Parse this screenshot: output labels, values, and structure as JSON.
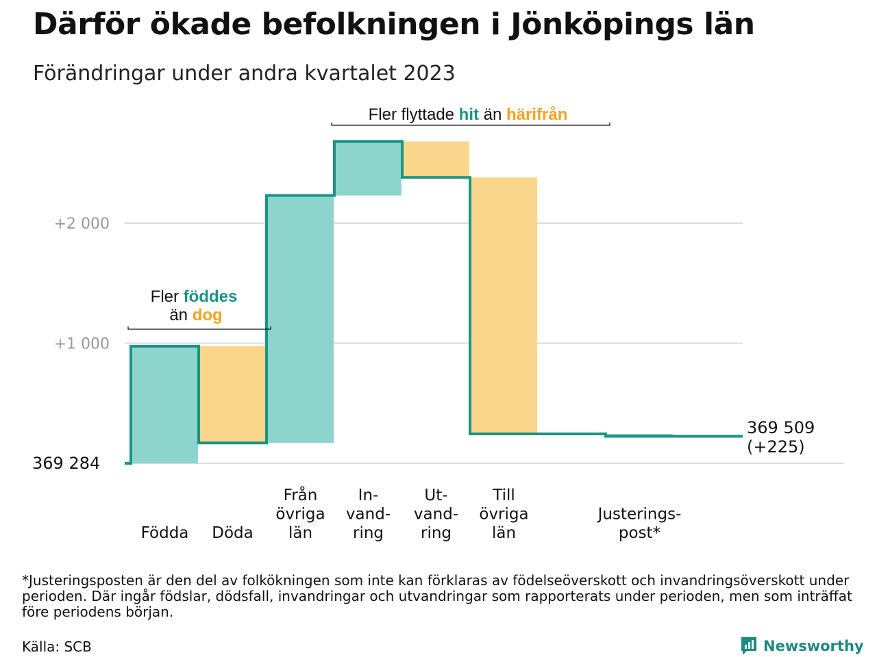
{
  "title": "Därför ökade befolkningen i Jönköpings län",
  "subtitle": "Förändringar under andra kvartalet 2023",
  "chart_data": {
    "type": "waterfall",
    "baseline": 369284,
    "baseline_label": "369 284",
    "end_value": 369509,
    "end_label_line1": "369 509",
    "end_label_line2": "(+225)",
    "ylim": [
      0,
      2800
    ],
    "y_ticks": [
      {
        "value": 1000,
        "label": "+1 000"
      },
      {
        "value": 2000,
        "label": "+2 000"
      }
    ],
    "grid": true,
    "steps": [
      {
        "id": "fodda",
        "label_lines": [
          "Födda"
        ],
        "delta": 975,
        "kind": "increase"
      },
      {
        "id": "doda",
        "label_lines": [
          "Döda"
        ],
        "delta": -805,
        "kind": "decrease"
      },
      {
        "id": "fran-ovriga-lan",
        "label_lines": [
          "Från",
          "övriga",
          "län"
        ],
        "delta": 2060,
        "kind": "increase"
      },
      {
        "id": "invandring",
        "label_lines": [
          "In-",
          "vand-",
          "ring"
        ],
        "delta": 450,
        "kind": "increase"
      },
      {
        "id": "utvandring",
        "label_lines": [
          "Ut-",
          "vand-",
          "ring"
        ],
        "delta": -300,
        "kind": "decrease"
      },
      {
        "id": "till-ovriga-lan",
        "label_lines": [
          "Till",
          "övriga",
          "län"
        ],
        "delta": -2135,
        "kind": "decrease"
      },
      {
        "id": "gap",
        "label_lines": [],
        "delta": 0,
        "kind": "none"
      },
      {
        "id": "justeringspost",
        "label_lines": [
          "Justerings-",
          "post*"
        ],
        "delta": -20,
        "kind": "adjust"
      }
    ],
    "annotations": {
      "births": {
        "before": "Fler ",
        "highlight1": "föddes",
        "middle": "än ",
        "highlight2": "dog"
      },
      "migration": {
        "before": "Fler flyttade ",
        "highlight1": "hit",
        "middle": " än ",
        "highlight2": "härifrån"
      }
    },
    "colors": {
      "increase": "#8dd5cc",
      "decrease": "#fad58c",
      "line": "#1a9484",
      "teal_text": "#1a9484",
      "orange_text": "#f5a320",
      "grid": "#dddddd",
      "tick_text": "#999999"
    }
  },
  "footnote": "*Justeringsposten är den del av folkökningen som inte kan förklaras av födelseöverskott och invandringsöverskott under perioden. Där ingår födslar, dödsfall, invandringar och utvandringar som rapporterats under perioden, men som inträffat före periodens början.",
  "source": "Källa: SCB",
  "brand": {
    "name": "Newsworthy",
    "icon": "newsworthy-logo-icon"
  }
}
